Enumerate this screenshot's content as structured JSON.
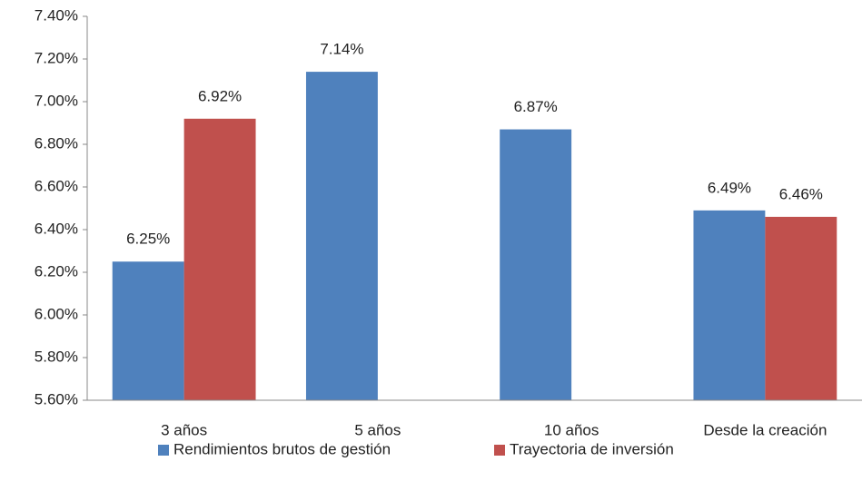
{
  "chart_data": {
    "type": "bar",
    "categories": [
      "3 años",
      "5 años",
      "10 años",
      "Desde la creación"
    ],
    "series": [
      {
        "name": "Rendimientos brutos de gestión",
        "color": "#4f81bd",
        "values": [
          6.25,
          7.14,
          6.87,
          6.49
        ],
        "value_labels": [
          "6.25%",
          "7.14%",
          "6.87%",
          "6.49%"
        ]
      },
      {
        "name": "Trayectoria de inversión",
        "color": "#c0504d",
        "values": [
          6.92,
          null,
          null,
          6.46
        ],
        "value_labels": [
          "6.92%",
          null,
          null,
          "6.46%"
        ]
      }
    ],
    "ylim": [
      5.6,
      7.4
    ],
    "yticks": [
      {
        "value": 5.6,
        "label": "5.60%"
      },
      {
        "value": 5.8,
        "label": "5.80%"
      },
      {
        "value": 6.0,
        "label": "6.00%"
      },
      {
        "value": 6.2,
        "label": "6.20%"
      },
      {
        "value": 6.4,
        "label": "6.40%"
      },
      {
        "value": 6.6,
        "label": "6.60%"
      },
      {
        "value": 6.8,
        "label": "6.80%"
      },
      {
        "value": 7.0,
        "label": "7.00%"
      },
      {
        "value": 7.2,
        "label": "7.20%"
      },
      {
        "value": 7.4,
        "label": "7.40%"
      }
    ],
    "grid": false,
    "legend": "bottom"
  }
}
